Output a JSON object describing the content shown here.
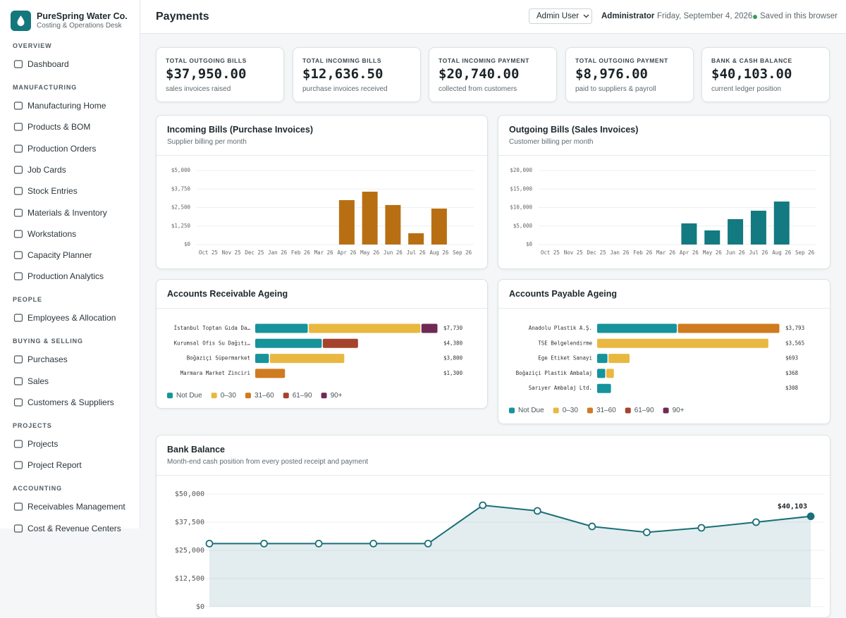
{
  "sidebar": {
    "brand": "PureSpring Water Co.",
    "tagline": "Costing & Operations Desk",
    "sections": [
      {
        "title": "OVERVIEW",
        "items": [
          "Dashboard"
        ]
      },
      {
        "title": "MANUFACTURING",
        "items": [
          "Manufacturing Home",
          "Products & BOM",
          "Production Orders",
          "Job Cards",
          "Stock Entries",
          "Materials & Inventory",
          "Workstations",
          "Capacity Planner",
          "Production Analytics"
        ]
      },
      {
        "title": "PEOPLE",
        "items": [
          "Employees & Allocation"
        ]
      },
      {
        "title": "BUYING & SELLING",
        "items": [
          "Purchases",
          "Sales",
          "Customers & Suppliers"
        ]
      },
      {
        "title": "PROJECTS",
        "items": [
          "Projects",
          "Project Report"
        ]
      },
      {
        "title": "ACCOUNTING",
        "items": [
          "Receivables Management",
          "Cost & Revenue Centers"
        ]
      }
    ]
  },
  "header": {
    "title": "Payments",
    "user_select": "Admin User",
    "role": "Administrator",
    "date": "Friday, September 4, 2026",
    "status": "Saved in this browser"
  },
  "kpis": [
    {
      "label": "TOTAL OUTGOING BILLS",
      "value": "$37,950.00",
      "note": "sales invoices raised"
    },
    {
      "label": "TOTAL INCOMING BILLS",
      "value": "$12,636.50",
      "note": "purchase invoices received"
    },
    {
      "label": "TOTAL INCOMING PAYMENT",
      "value": "$20,740.00",
      "note": "collected from customers"
    },
    {
      "label": "TOTAL OUTGOING PAYMENT",
      "value": "$8,976.00",
      "note": "paid to suppliers & payroll"
    },
    {
      "label": "BANK & CASH BALANCE",
      "value": "$40,103.00",
      "note": "current ledger position"
    }
  ],
  "chart_data": [
    {
      "type": "bar",
      "title": "Incoming Bills (Purchase Invoices)",
      "subtitle": "Supplier billing per month",
      "categories": [
        "Oct 25",
        "Nov 25",
        "Dec 25",
        "Jan 26",
        "Feb 26",
        "Mar 26",
        "Apr 26",
        "May 26",
        "Jun 26",
        "Jul 26",
        "Aug 26",
        "Sep 26"
      ],
      "values": [
        0,
        0,
        0,
        0,
        0,
        0,
        3000,
        3570,
        2670,
        760,
        2430,
        0
      ],
      "color": "#b86f14",
      "ylim": [
        0,
        5000
      ],
      "yticks": [
        {
          "value": 0,
          "label": "$0"
        },
        {
          "value": 1250,
          "label": "$1,250"
        },
        {
          "value": 2500,
          "label": "$2,500"
        },
        {
          "value": 3750,
          "label": "$3,750"
        },
        {
          "value": 5000,
          "label": "$5,000"
        }
      ],
      "grid": true
    },
    {
      "type": "bar",
      "title": "Outgoing Bills (Sales Invoices)",
      "subtitle": "Customer billing per month",
      "categories": [
        "Oct 25",
        "Nov 25",
        "Dec 25",
        "Jan 26",
        "Feb 26",
        "Mar 26",
        "Apr 26",
        "May 26",
        "Jun 26",
        "Jul 26",
        "Aug 26",
        "Sep 26"
      ],
      "values": [
        0,
        0,
        0,
        0,
        0,
        0,
        5710,
        3810,
        6860,
        9140,
        11620,
        0
      ],
      "color": "#137a81",
      "ylim": [
        0,
        20000
      ],
      "yticks": [
        {
          "value": 0,
          "label": "$0"
        },
        {
          "value": 5000,
          "label": "$5,000"
        },
        {
          "value": 10000,
          "label": "$10,000"
        },
        {
          "value": 15000,
          "label": "$15,000"
        },
        {
          "value": 20000,
          "label": "$20,000"
        }
      ],
      "grid": true
    },
    {
      "type": "stacked-hbar",
      "title": "Accounts Receivable Ageing",
      "categories": [
        "İstanbul Toptan Gıda Da…",
        "Kurumsal Ofis Su Dağıtı…",
        "Boğaziçi Süpermarket",
        "Marmara Market Zinciri"
      ],
      "series": [
        {
          "name": "Not Due",
          "color": "#16939b",
          "values": [
            2260,
            2850,
            620,
            0
          ]
        },
        {
          "name": "0–30",
          "color": "#e9b840",
          "values": [
            4750,
            0,
            3180,
            0
          ]
        },
        {
          "name": "31–60",
          "color": "#cf7b1f",
          "values": [
            0,
            0,
            0,
            1300
          ]
        },
        {
          "name": "61–90",
          "color": "#a6432c",
          "values": [
            0,
            1530,
            0,
            0
          ]
        },
        {
          "name": "90+",
          "color": "#6e2a55",
          "values": [
            720,
            0,
            0,
            0
          ]
        }
      ],
      "totals": [
        7730,
        4380,
        3800,
        1300
      ],
      "total_labels": [
        "$7,730",
        "$4,380",
        "$3,800",
        "$1,300"
      ]
    },
    {
      "type": "stacked-hbar",
      "title": "Accounts Payable Ageing",
      "categories": [
        "Anadolu Plastik A.Ş.",
        "TSE Belgelendirme",
        "Ege Etiket Sanayi",
        "Boğaziçi Plastik Ambalaj",
        "Sarıyer Ambalaj Ltd."
      ],
      "series": [
        {
          "name": "Not Due",
          "color": "#16939b",
          "values": [
            1670,
            0,
            235,
            190,
            308
          ]
        },
        {
          "name": "0–30",
          "color": "#e9b840",
          "values": [
            0,
            3565,
            458,
            178,
            0
          ]
        },
        {
          "name": "31–60",
          "color": "#cf7b1f",
          "values": [
            2123,
            0,
            0,
            0,
            0
          ]
        },
        {
          "name": "61–90",
          "color": "#a6432c",
          "values": [
            0,
            0,
            0,
            0,
            0
          ]
        },
        {
          "name": "90+",
          "color": "#6e2a55",
          "values": [
            0,
            0,
            0,
            0,
            0
          ]
        }
      ],
      "totals": [
        3793,
        3565,
        693,
        368,
        308
      ],
      "total_labels": [
        "$3,793",
        "$3,565",
        "$693",
        "$368",
        "$308"
      ]
    },
    {
      "type": "line",
      "title": "Bank Balance",
      "subtitle": "Month-end cash position from every posted receipt and payment",
      "values": [
        28000,
        28000,
        28000,
        28000,
        28000,
        45000,
        42500,
        35600,
        33000,
        35000,
        37500,
        40103
      ],
      "value_labels": [
        null,
        null,
        null,
        null,
        null,
        null,
        null,
        null,
        null,
        null,
        null,
        "$40,103"
      ],
      "color": "#1a6f78",
      "ylim": [
        0,
        50000
      ],
      "yticks": [
        {
          "value": 0,
          "label": "$0"
        },
        {
          "value": 12500,
          "label": "$12,500"
        },
        {
          "value": 25000,
          "label": "$25,000"
        },
        {
          "value": 37500,
          "label": "$37,500"
        },
        {
          "value": 50000,
          "label": "$50,000"
        }
      ],
      "grid": true
    }
  ]
}
